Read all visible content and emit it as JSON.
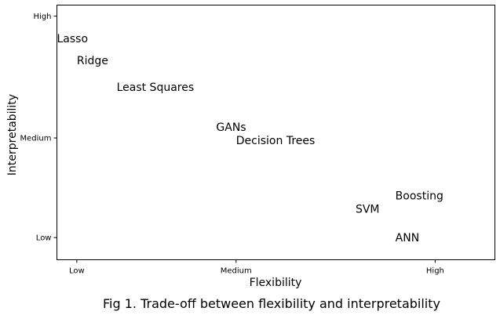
{
  "chart_data": {
    "type": "scatter",
    "caption": "Fig 1. Trade-off between flexibility and interpretability",
    "xlabel": "Flexibility",
    "ylabel": "Interpretability",
    "xlim": [
      -0.1,
      2.1
    ],
    "ylim": [
      -0.1,
      1.05
    ],
    "x_ticks": [
      {
        "value": 0,
        "label": "Low"
      },
      {
        "value": 0.8,
        "label": "Medium"
      },
      {
        "value": 1.8,
        "label": "High"
      }
    ],
    "y_ticks": [
      {
        "value": 0,
        "label": "Low"
      },
      {
        "value": 0.45,
        "label": "Medium"
      },
      {
        "value": 1.0,
        "label": "High"
      }
    ],
    "grid": false,
    "points": [
      {
        "label": "Lasso",
        "x": -0.1,
        "y": 0.9
      },
      {
        "label": "Ridge",
        "x": 0.0,
        "y": 0.8
      },
      {
        "label": "Least Squares",
        "x": 0.2,
        "y": 0.68
      },
      {
        "label": "GANs",
        "x": 0.7,
        "y": 0.5
      },
      {
        "label": "Decision Trees",
        "x": 0.8,
        "y": 0.44
      },
      {
        "label": "SVM",
        "x": 1.4,
        "y": 0.13
      },
      {
        "label": "Boosting",
        "x": 1.6,
        "y": 0.19
      },
      {
        "label": "ANN",
        "x": 1.6,
        "y": 0.0
      }
    ]
  }
}
